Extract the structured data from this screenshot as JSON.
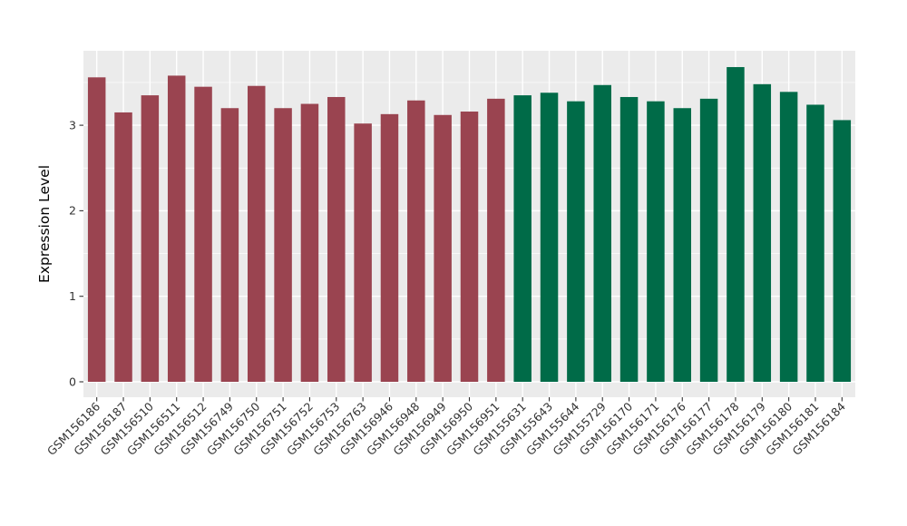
{
  "chart": {
    "panel_bg": "#EBEBEB",
    "grid_color": "#FFFFFF",
    "tick_color": "#333333",
    "axis_text_color": "#333333",
    "axis_title_color": "#000000",
    "background": "#FFFFFF"
  },
  "chart_data": {
    "type": "bar",
    "title": "",
    "xlabel": "",
    "ylabel": "Expression Level",
    "ylim": [
      0,
      3.85
    ],
    "yticks": [
      0,
      1,
      2,
      3
    ],
    "grid": true,
    "legend": "none",
    "x_label_rotation": 45,
    "categories": [
      "GSM156186",
      "GSM156187",
      "GSM156510",
      "GSM156511",
      "GSM156512",
      "GSM156749",
      "GSM156750",
      "GSM156751",
      "GSM156752",
      "GSM156753",
      "GSM156763",
      "GSM156946",
      "GSM156948",
      "GSM156949",
      "GSM156950",
      "GSM156951",
      "GSM155631",
      "GSM155643",
      "GSM155644",
      "GSM155729",
      "GSM156170",
      "GSM156171",
      "GSM156176",
      "GSM156177",
      "GSM156178",
      "GSM156179",
      "GSM156180",
      "GSM156181",
      "GSM156184"
    ],
    "values": [
      3.56,
      3.15,
      3.35,
      3.58,
      3.45,
      3.2,
      3.46,
      3.2,
      3.25,
      3.33,
      3.02,
      3.13,
      3.29,
      3.12,
      3.16,
      3.31,
      3.35,
      3.38,
      3.28,
      3.47,
      3.33,
      3.28,
      3.2,
      3.31,
      3.68,
      3.48,
      3.39,
      3.24,
      3.06
    ],
    "groups": [
      "red",
      "red",
      "red",
      "red",
      "red",
      "red",
      "red",
      "red",
      "red",
      "red",
      "red",
      "red",
      "red",
      "red",
      "red",
      "red",
      "green",
      "green",
      "green",
      "green",
      "green",
      "green",
      "green",
      "green",
      "green",
      "green",
      "green",
      "green",
      "green"
    ],
    "group_colors": {
      "red": "#9A4450",
      "green": "#006B48"
    }
  }
}
